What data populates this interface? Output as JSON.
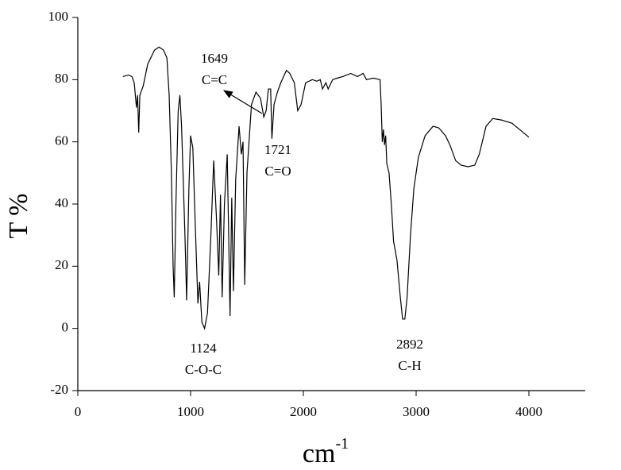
{
  "chart_data": {
    "type": "line",
    "x_label": "cm",
    "x_label_superscript": "-1",
    "y_label": "T %",
    "x": [
      400,
      450,
      480,
      500,
      520,
      530,
      540,
      550,
      580,
      620,
      680,
      720,
      760,
      790,
      810,
      830,
      845,
      855,
      870,
      890,
      905,
      920,
      950,
      965,
      985,
      1000,
      1020,
      1040,
      1065,
      1080,
      1100,
      1124,
      1150,
      1180,
      1205,
      1230,
      1250,
      1265,
      1280,
      1300,
      1325,
      1350,
      1365,
      1380,
      1400,
      1430,
      1450,
      1465,
      1480,
      1500,
      1540,
      1580,
      1620,
      1649,
      1670,
      1690,
      1710,
      1721,
      1740,
      1770,
      1800,
      1850,
      1880,
      1920,
      1950,
      1980,
      2020,
      2080,
      2120,
      2150,
      2170,
      2200,
      2220,
      2260,
      2300,
      2350,
      2420,
      2480,
      2530,
      2560,
      2620,
      2680,
      2690,
      2700,
      2710,
      2720,
      2730,
      2740,
      2760,
      2780,
      2800,
      2830,
      2860,
      2880,
      2900,
      2920,
      2950,
      2980,
      3020,
      3080,
      3150,
      3200,
      3260,
      3300,
      3350,
      3400,
      3460,
      3520,
      3560,
      3620,
      3680,
      3760,
      3850,
      3900,
      4000
    ],
    "values": [
      81,
      81.5,
      81,
      79,
      71,
      75,
      63,
      75,
      78,
      85,
      89.5,
      90.5,
      89.5,
      87,
      75,
      50,
      20,
      10,
      40,
      70,
      75,
      65,
      30,
      9,
      45,
      62,
      58,
      35,
      8,
      15,
      2,
      0,
      5,
      30,
      54,
      35,
      17,
      43,
      10,
      40,
      56,
      4,
      42,
      12,
      48,
      65,
      56,
      60,
      14,
      50,
      72,
      76,
      74,
      68,
      70,
      77,
      77,
      61,
      72,
      76,
      79,
      83,
      82,
      79,
      70,
      72,
      79,
      80,
      79.5,
      80,
      77,
      79,
      77,
      80,
      80.5,
      81,
      82,
      81,
      82,
      80,
      80.5,
      80,
      72,
      60,
      64,
      59,
      62,
      53,
      50,
      40,
      28,
      22,
      10,
      3,
      3,
      10,
      30,
      45,
      55,
      62,
      65,
      64.5,
      62,
      59,
      54,
      52.5,
      52,
      52.5,
      56,
      65,
      67.5,
      67,
      66,
      64.5,
      61.5
    ],
    "color": "#000000",
    "xlim": [
      0,
      4500
    ],
    "xticks": [
      0,
      1000,
      2000,
      3000,
      4000
    ],
    "ylim": [
      -20,
      100
    ],
    "yticks": [
      -20,
      0,
      20,
      40,
      60,
      80,
      100
    ],
    "grid": false,
    "annotations": [
      {
        "number": "1649",
        "group": "C=C"
      },
      {
        "number": "1721",
        "group": "C=O"
      },
      {
        "number": "1124",
        "group": "C-O-C"
      },
      {
        "number": "2892",
        "group": "C-H"
      }
    ]
  }
}
